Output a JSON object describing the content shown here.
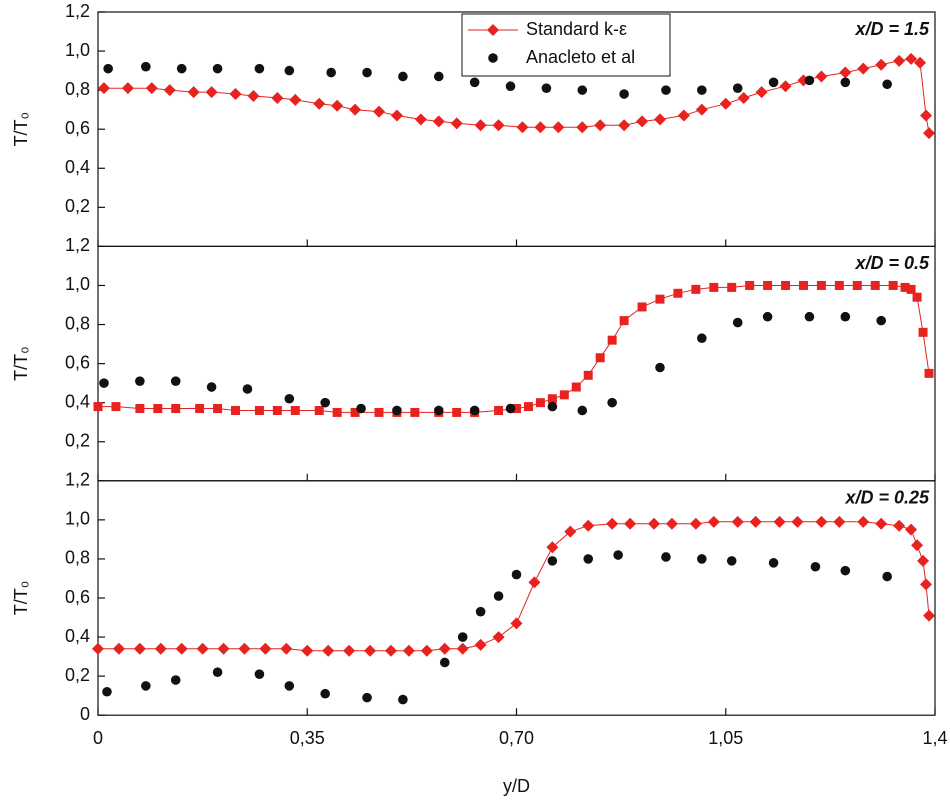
{
  "chart_data": [
    {
      "type": "scatter",
      "annotation": "x/D = 1.5",
      "ylabel": "T/T₀",
      "xlim": [
        0,
        1.4
      ],
      "ylim": [
        0,
        1.2
      ],
      "yticks": [
        {
          "value": 0.2,
          "label": "0,2"
        },
        {
          "value": 0.4,
          "label": "0,4"
        },
        {
          "value": 0.6,
          "label": "0,6"
        },
        {
          "value": 0.8,
          "label": "0,8"
        },
        {
          "value": 1.0,
          "label": "1,0"
        },
        {
          "value": 1.2,
          "label": "1,2"
        }
      ],
      "legend": "top-center",
      "series": [
        {
          "name": "Standard k-ε",
          "color": "#e8231f",
          "marker": "diamond",
          "line": true,
          "x": [
            0.01,
            0.05,
            0.09,
            0.12,
            0.16,
            0.19,
            0.23,
            0.26,
            0.3,
            0.33,
            0.37,
            0.4,
            0.43,
            0.47,
            0.5,
            0.54,
            0.57,
            0.6,
            0.64,
            0.67,
            0.71,
            0.74,
            0.77,
            0.81,
            0.84,
            0.88,
            0.91,
            0.94,
            0.98,
            1.01,
            1.05,
            1.08,
            1.11,
            1.15,
            1.18,
            1.21,
            1.25,
            1.28,
            1.31,
            1.34,
            1.36,
            1.375,
            1.385,
            1.39
          ],
          "values": [
            0.81,
            0.81,
            0.81,
            0.8,
            0.79,
            0.79,
            0.78,
            0.77,
            0.76,
            0.75,
            0.73,
            0.72,
            0.7,
            0.69,
            0.67,
            0.65,
            0.64,
            0.63,
            0.62,
            0.62,
            0.61,
            0.61,
            0.61,
            0.61,
            0.62,
            0.62,
            0.64,
            0.65,
            0.67,
            0.7,
            0.73,
            0.76,
            0.79,
            0.82,
            0.85,
            0.87,
            0.89,
            0.91,
            0.93,
            0.95,
            0.96,
            0.94,
            0.67,
            0.58
          ]
        },
        {
          "name": "Anacleto et al",
          "color": "#111111",
          "marker": "circle",
          "line": false,
          "x": [
            0.017,
            0.08,
            0.14,
            0.2,
            0.27,
            0.32,
            0.39,
            0.45,
            0.51,
            0.57,
            0.63,
            0.69,
            0.75,
            0.81,
            0.88,
            0.95,
            1.01,
            1.07,
            1.13,
            1.19,
            1.25,
            1.32
          ],
          "values": [
            0.91,
            0.92,
            0.91,
            0.91,
            0.91,
            0.9,
            0.89,
            0.89,
            0.87,
            0.87,
            0.84,
            0.82,
            0.81,
            0.8,
            0.78,
            0.8,
            0.8,
            0.81,
            0.84,
            0.85,
            0.84,
            0.83
          ]
        }
      ]
    },
    {
      "type": "scatter",
      "annotation": "x/D = 0.5",
      "ylabel": "T/T₀",
      "xlim": [
        0,
        1.4
      ],
      "ylim": [
        0,
        1.2
      ],
      "yticks": [
        {
          "value": 0.2,
          "label": "0,2"
        },
        {
          "value": 0.4,
          "label": "0,4"
        },
        {
          "value": 0.6,
          "label": "0,6"
        },
        {
          "value": 0.8,
          "label": "0,8"
        },
        {
          "value": 1.0,
          "label": "1,0"
        },
        {
          "value": 1.2,
          "label": "1,2"
        }
      ],
      "series": [
        {
          "color": "#e8231f",
          "marker": "square",
          "line": true,
          "x": [
            0,
            0.03,
            0.07,
            0.1,
            0.13,
            0.17,
            0.2,
            0.23,
            0.27,
            0.3,
            0.33,
            0.37,
            0.4,
            0.43,
            0.47,
            0.5,
            0.53,
            0.57,
            0.6,
            0.63,
            0.67,
            0.7,
            0.72,
            0.74,
            0.76,
            0.78,
            0.8,
            0.82,
            0.84,
            0.86,
            0.88,
            0.91,
            0.94,
            0.97,
            1.0,
            1.03,
            1.06,
            1.09,
            1.12,
            1.15,
            1.18,
            1.21,
            1.24,
            1.27,
            1.3,
            1.33,
            1.35,
            1.36,
            1.37,
            1.38,
            1.39
          ],
          "values": [
            0.38,
            0.38,
            0.37,
            0.37,
            0.37,
            0.37,
            0.37,
            0.36,
            0.36,
            0.36,
            0.36,
            0.36,
            0.35,
            0.35,
            0.35,
            0.35,
            0.35,
            0.35,
            0.35,
            0.35,
            0.36,
            0.37,
            0.38,
            0.4,
            0.42,
            0.44,
            0.48,
            0.54,
            0.63,
            0.72,
            0.82,
            0.89,
            0.93,
            0.96,
            0.98,
            0.99,
            0.99,
            1.0,
            1.0,
            1.0,
            1.0,
            1.0,
            1.0,
            1.0,
            1.0,
            1.0,
            0.99,
            0.98,
            0.94,
            0.76,
            0.55
          ]
        },
        {
          "color": "#111111",
          "marker": "circle",
          "line": false,
          "x": [
            0.01,
            0.07,
            0.13,
            0.19,
            0.25,
            0.32,
            0.38,
            0.44,
            0.5,
            0.57,
            0.63,
            0.69,
            0.76,
            0.81,
            0.86,
            0.94,
            1.01,
            1.07,
            1.12,
            1.19,
            1.25,
            1.31
          ],
          "values": [
            0.5,
            0.51,
            0.51,
            0.48,
            0.47,
            0.42,
            0.4,
            0.37,
            0.36,
            0.36,
            0.36,
            0.37,
            0.38,
            0.36,
            0.4,
            0.58,
            0.73,
            0.81,
            0.84,
            0.84,
            0.84,
            0.82
          ]
        }
      ]
    },
    {
      "type": "scatter",
      "annotation": "x/D = 0.25",
      "ylabel": "T/T₀",
      "xlabel": "y/D",
      "xlim": [
        0,
        1.4
      ],
      "ylim": [
        0,
        1.2
      ],
      "xticks": [
        0,
        {
          "value": 0.35,
          "label": "0,35"
        },
        {
          "value": 0.7,
          "label": "0,70"
        },
        {
          "value": 1.05,
          "label": "1,05"
        },
        {
          "value": 1.4,
          "label": "1,4"
        }
      ],
      "yticks": [
        0,
        {
          "value": 0.2,
          "label": "0,2"
        },
        {
          "value": 0.4,
          "label": "0,4"
        },
        {
          "value": 0.6,
          "label": "0,6"
        },
        {
          "value": 0.8,
          "label": "0,8"
        },
        {
          "value": 1.0,
          "label": "1,0"
        },
        {
          "value": 1.2,
          "label": "1,2"
        }
      ],
      "series": [
        {
          "color": "#e8231f",
          "marker": "diamond",
          "line": true,
          "x": [
            0,
            0.035,
            0.07,
            0.105,
            0.14,
            0.175,
            0.21,
            0.245,
            0.28,
            0.315,
            0.35,
            0.385,
            0.42,
            0.455,
            0.49,
            0.52,
            0.55,
            0.58,
            0.61,
            0.64,
            0.67,
            0.7,
            0.73,
            0.76,
            0.79,
            0.82,
            0.86,
            0.89,
            0.93,
            0.96,
            1.0,
            1.03,
            1.07,
            1.1,
            1.14,
            1.17,
            1.21,
            1.24,
            1.28,
            1.31,
            1.34,
            1.36,
            1.37,
            1.38,
            1.385,
            1.39
          ],
          "values": [
            0.34,
            0.34,
            0.34,
            0.34,
            0.34,
            0.34,
            0.34,
            0.34,
            0.34,
            0.34,
            0.33,
            0.33,
            0.33,
            0.33,
            0.33,
            0.33,
            0.33,
            0.34,
            0.34,
            0.36,
            0.4,
            0.47,
            0.68,
            0.86,
            0.94,
            0.97,
            0.98,
            0.98,
            0.98,
            0.98,
            0.98,
            0.99,
            0.99,
            0.99,
            0.99,
            0.99,
            0.99,
            0.99,
            0.99,
            0.98,
            0.97,
            0.95,
            0.87,
            0.79,
            0.67,
            0.51
          ]
        },
        {
          "color": "#111111",
          "marker": "circle",
          "line": false,
          "x": [
            0.015,
            0.08,
            0.13,
            0.2,
            0.27,
            0.32,
            0.38,
            0.45,
            0.51,
            0.58,
            0.61,
            0.64,
            0.67,
            0.7,
            0.76,
            0.82,
            0.87,
            0.95,
            1.01,
            1.06,
            1.13,
            1.2,
            1.25,
            1.32
          ],
          "values": [
            0.12,
            0.15,
            0.18,
            0.22,
            0.21,
            0.15,
            0.11,
            0.09,
            0.08,
            0.27,
            0.4,
            0.53,
            0.61,
            0.72,
            0.79,
            0.8,
            0.82,
            0.81,
            0.8,
            0.79,
            0.78,
            0.76,
            0.74,
            0.71
          ]
        }
      ]
    }
  ]
}
